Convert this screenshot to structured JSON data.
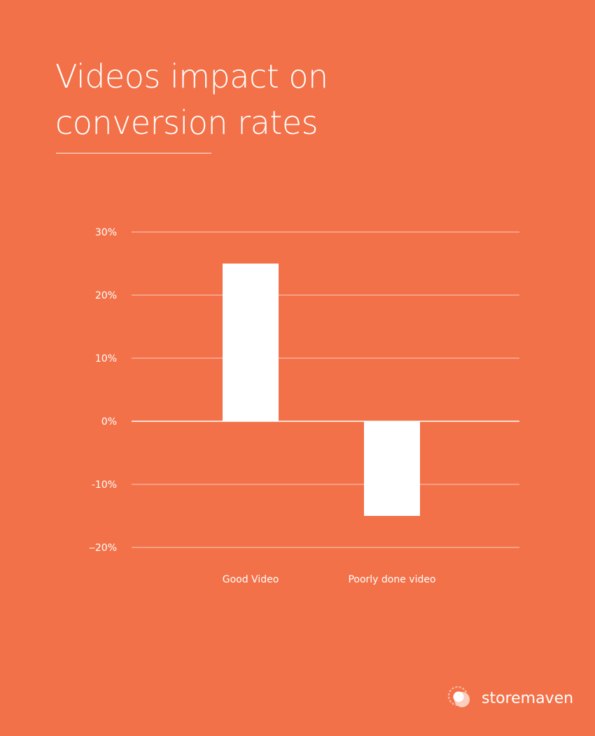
{
  "colors": {
    "background": "#F37148",
    "bar": "#FFFFFF",
    "gridline": "#FFFFFF",
    "text": "#FFFFFF"
  },
  "title_lines": [
    "Videos impact on",
    "conversion rates"
  ],
  "brand": {
    "name": "storemaven",
    "icon": "storemaven-logo-icon"
  },
  "chart_data": {
    "type": "bar",
    "categories": [
      "Good Video",
      "Poorly done video"
    ],
    "values": [
      25,
      -15
    ],
    "ylim": [
      -20,
      30
    ],
    "yticks": [
      30,
      20,
      10,
      0,
      -10,
      -20
    ],
    "ytick_labels": [
      "30%",
      "20%",
      "10%",
      "0%",
      "-10%",
      "‒20%"
    ],
    "grid": true,
    "legend": "none"
  }
}
